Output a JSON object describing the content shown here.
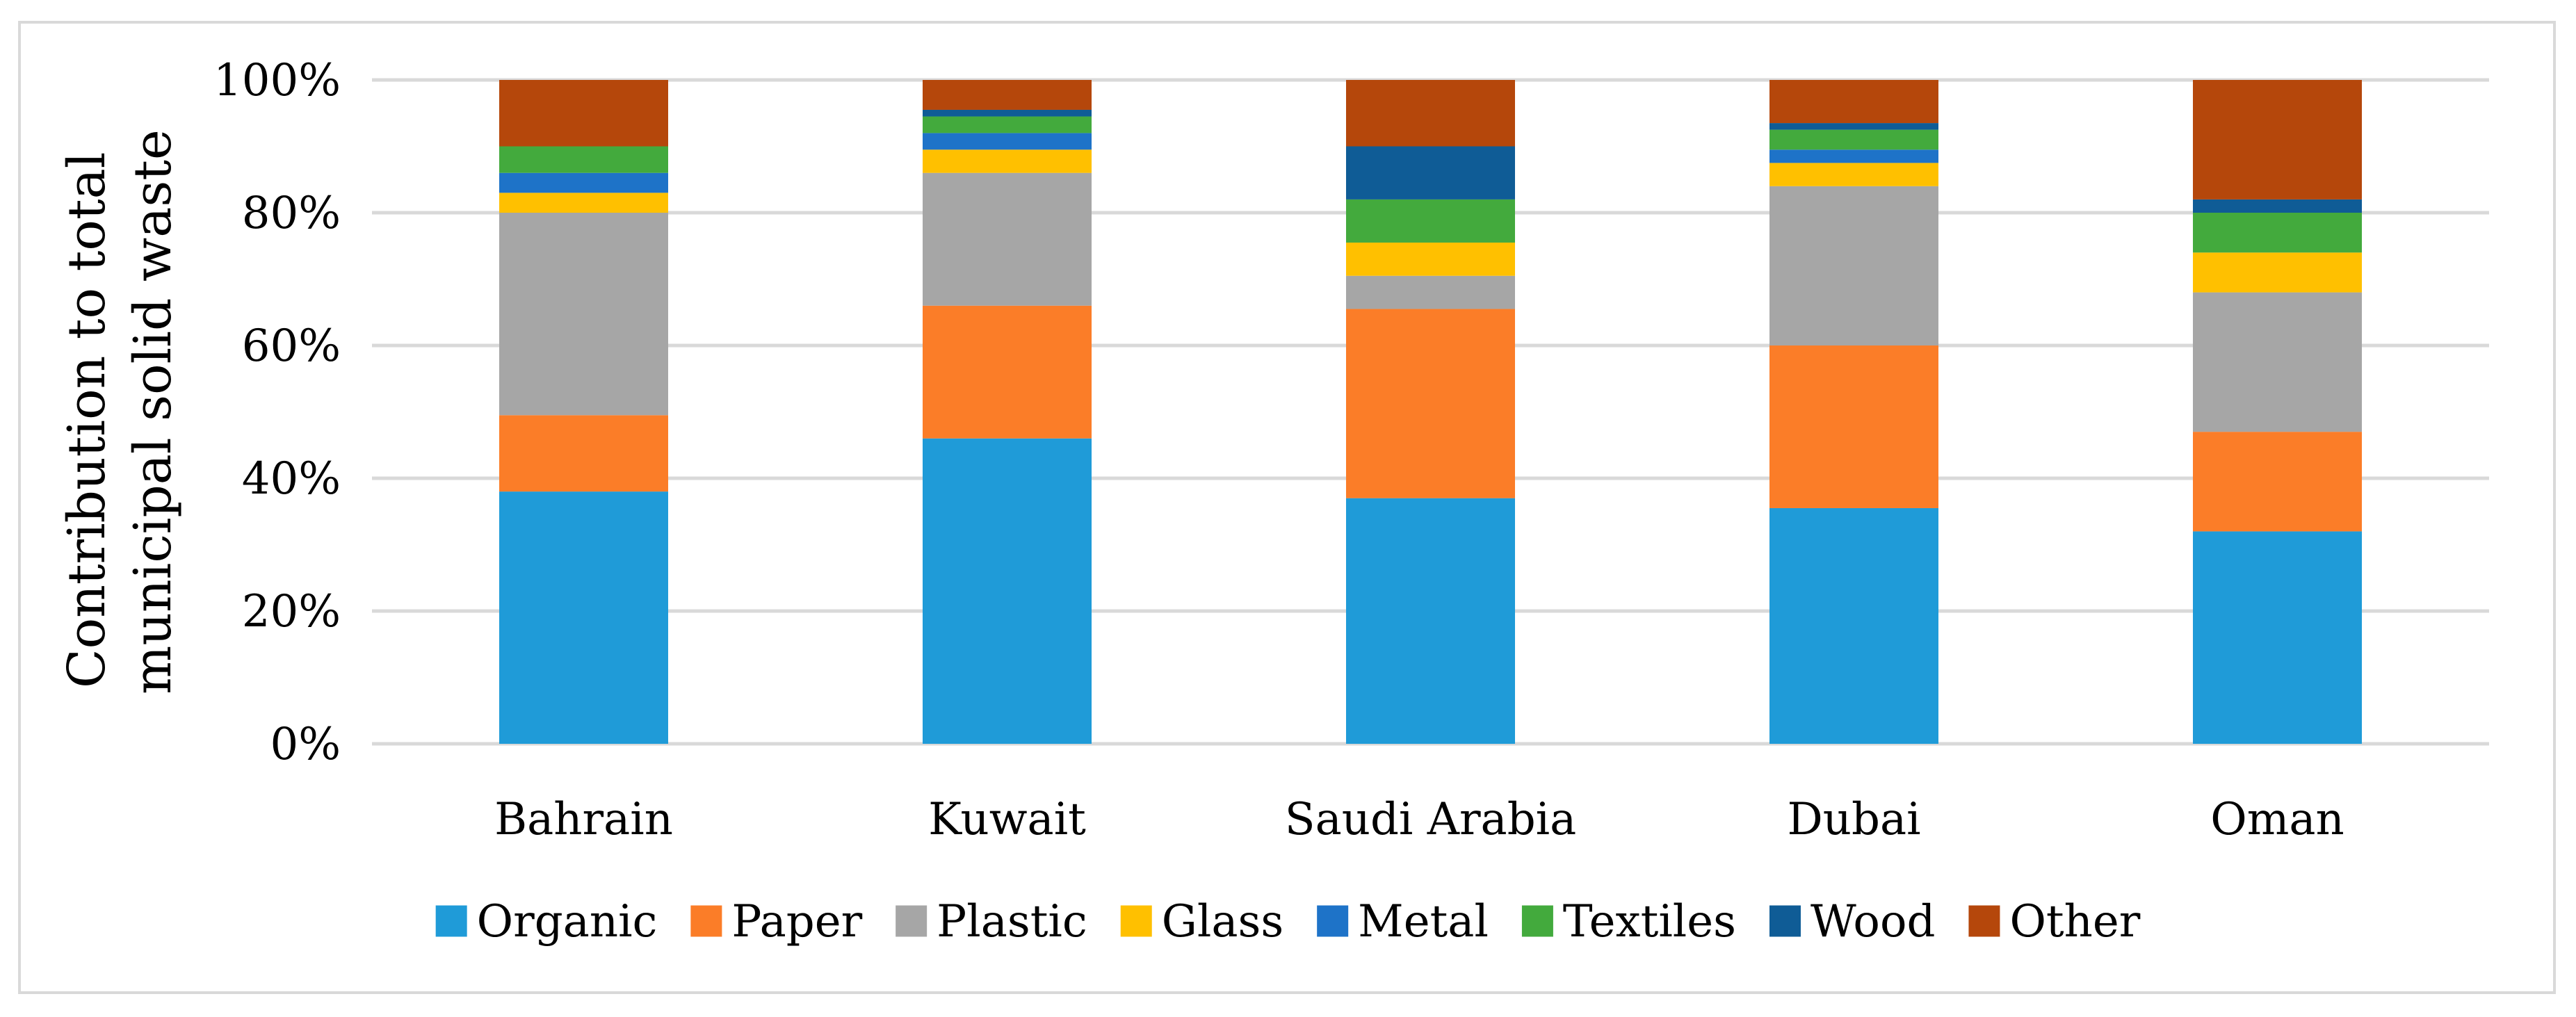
{
  "chart_data": {
    "type": "bar",
    "stacked": true,
    "title": "",
    "xlabel": "",
    "ylabel": [
      "Contribution to total",
      "municipal solid waste"
    ],
    "ylim": [
      0,
      100
    ],
    "y_ticks": [
      "0%",
      "20%",
      "40%",
      "60%",
      "80%",
      "100%"
    ],
    "grid": true,
    "legend_position": "bottom",
    "categories": [
      "Bahrain",
      "Kuwait",
      "Saudi Arabia",
      "Dubai",
      "Oman"
    ],
    "series": [
      {
        "name": "Organic",
        "color": "#1f9bd8",
        "values": [
          38,
          46,
          37,
          35.5,
          32
        ]
      },
      {
        "name": "Paper",
        "color": "#fb7d28",
        "values": [
          11.5,
          20,
          28.5,
          24.5,
          15
        ]
      },
      {
        "name": "Plastic",
        "color": "#a6a6a6",
        "values": [
          30.5,
          20,
          5,
          24,
          21
        ]
      },
      {
        "name": "Glass",
        "color": "#ffc000",
        "values": [
          3,
          3.5,
          5,
          3.5,
          6
        ]
      },
      {
        "name": "Metal",
        "color": "#1e73c8",
        "values": [
          3,
          2.5,
          0,
          2,
          0
        ]
      },
      {
        "name": "Textiles",
        "color": "#43aa3d",
        "values": [
          4,
          2.5,
          6.5,
          3,
          6
        ]
      },
      {
        "name": "Wood",
        "color": "#0f5c96",
        "values": [
          0,
          1,
          8,
          1,
          2
        ]
      },
      {
        "name": "Other",
        "color": "#b5470b",
        "values": [
          10,
          4.5,
          10,
          6.5,
          18
        ]
      }
    ]
  }
}
